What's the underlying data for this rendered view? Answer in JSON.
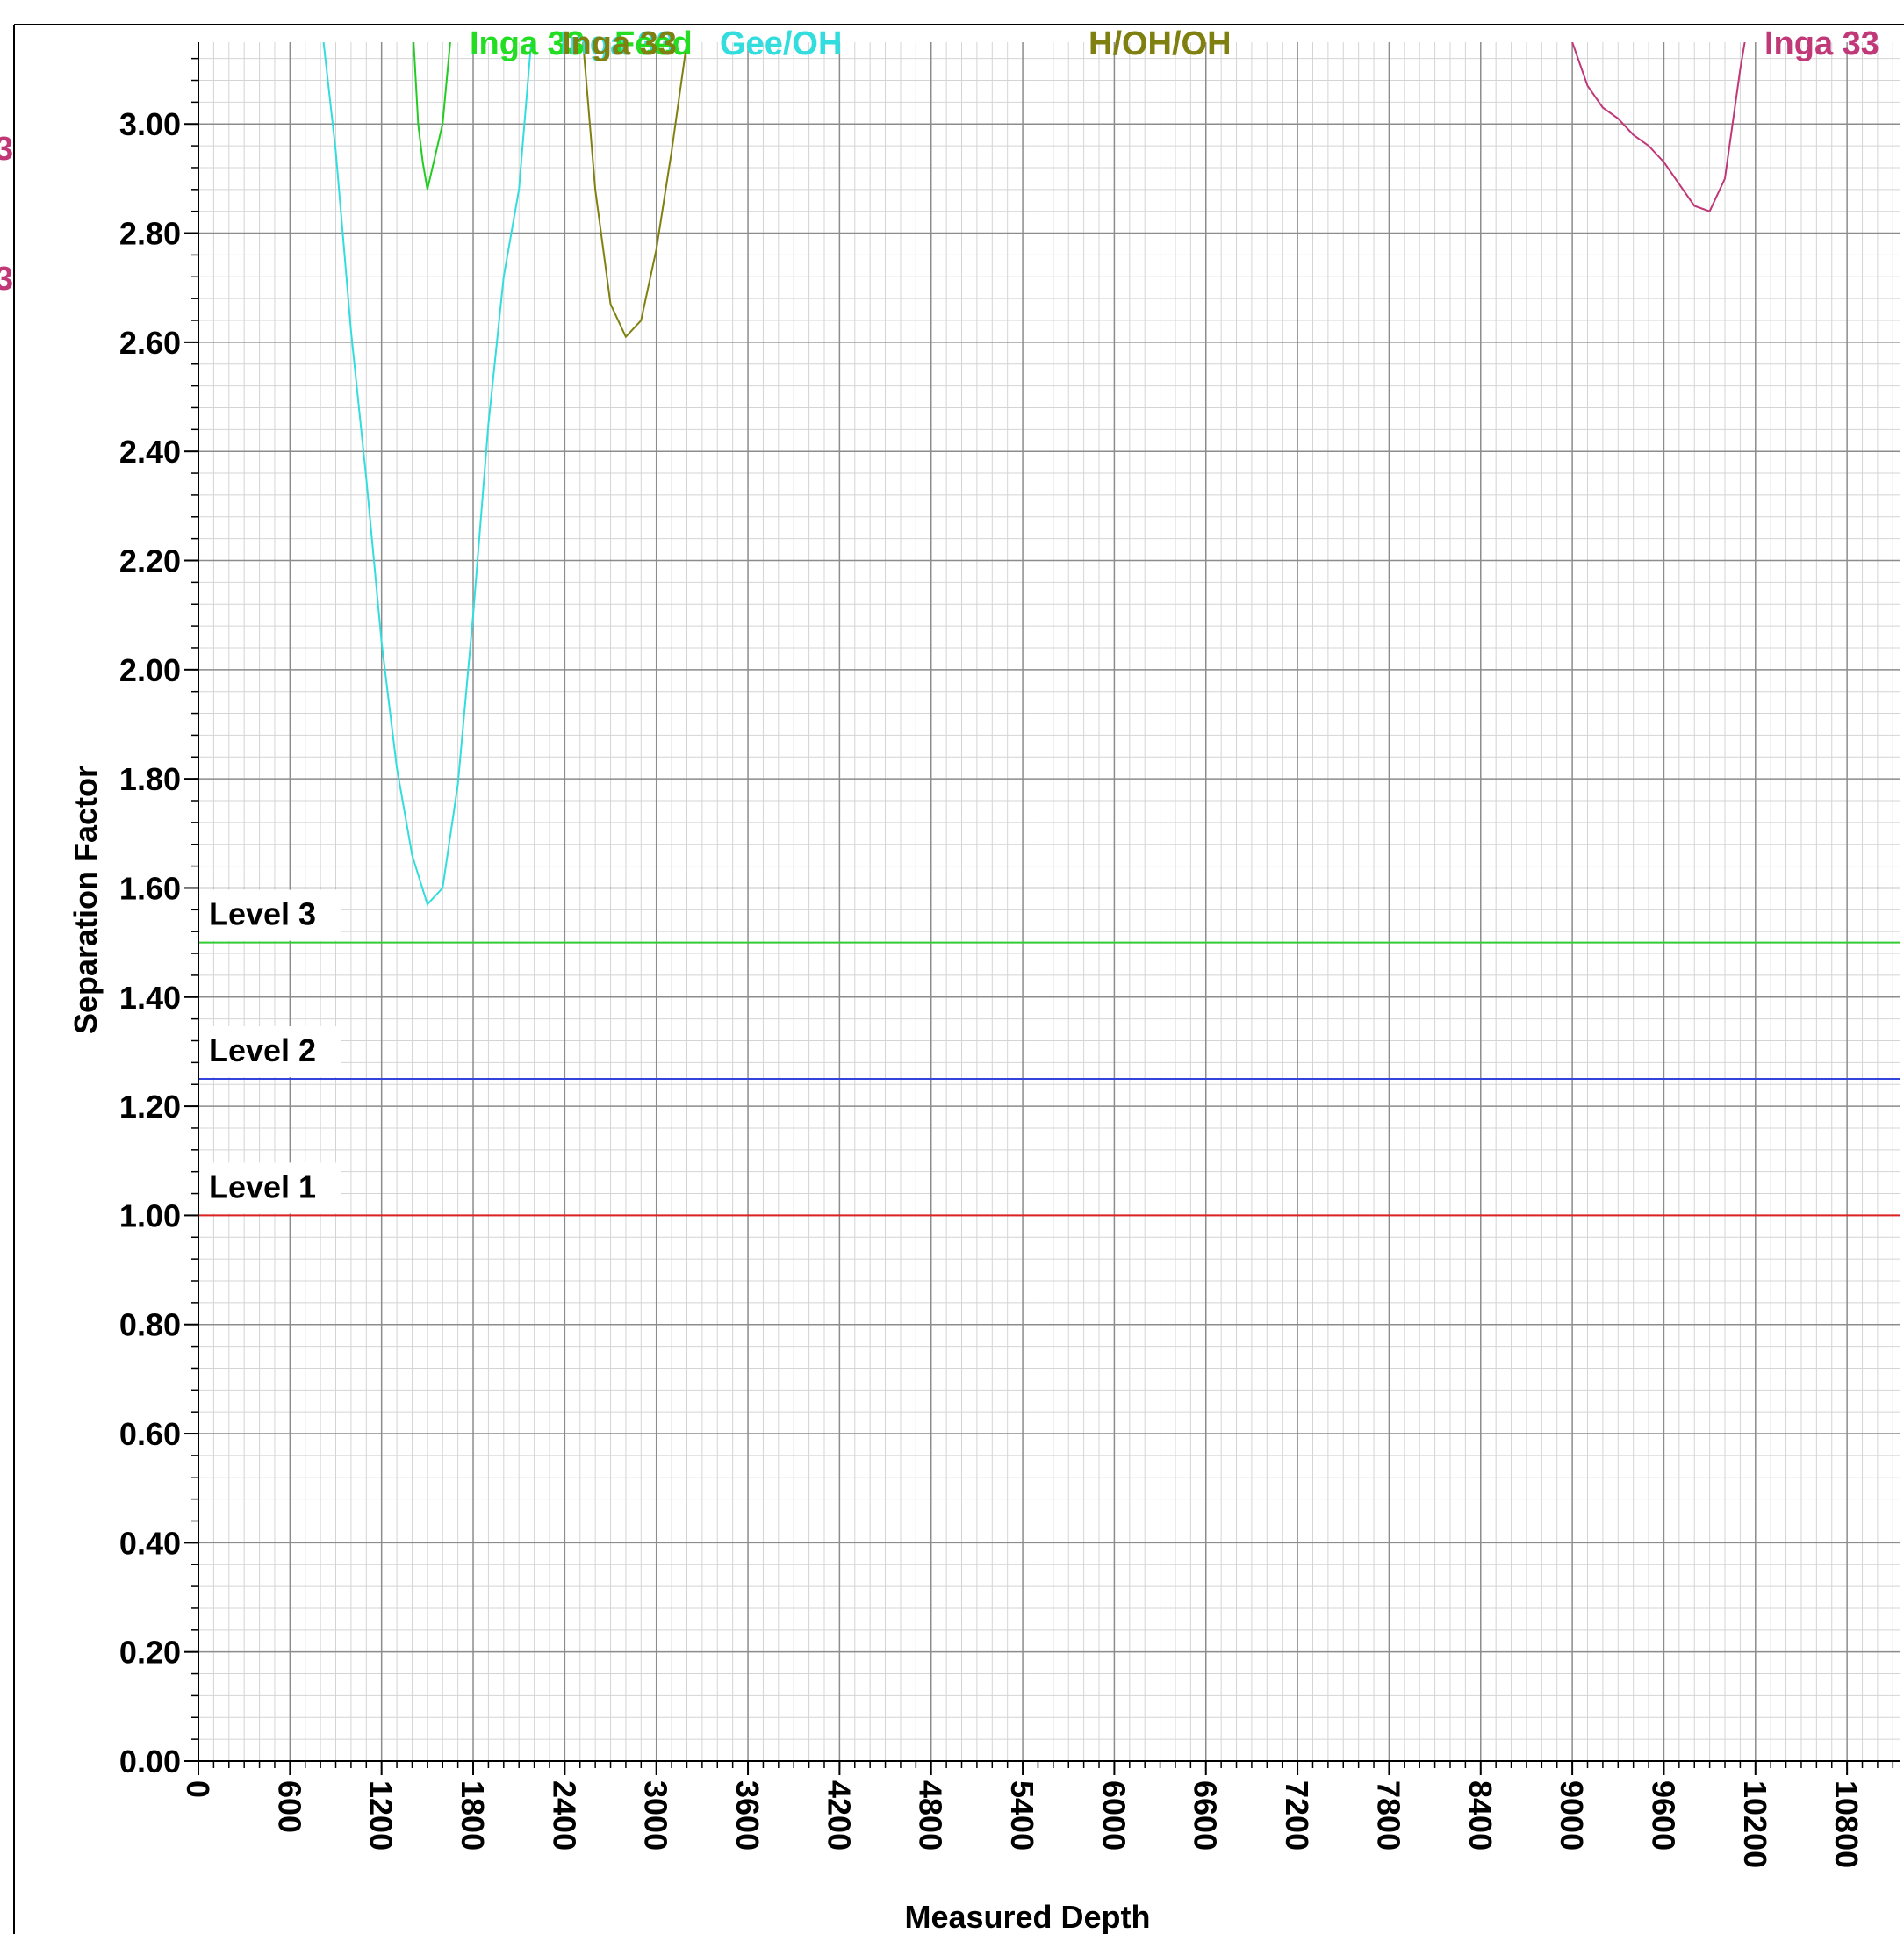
{
  "chart_data": {
    "type": "line",
    "title": "",
    "xlabel": "Measured Depth",
    "ylabel": "Separation Factor",
    "xlim": [
      0,
      11150
    ],
    "ylim": [
      0,
      3.15
    ],
    "x_ticks": [
      0,
      600,
      1200,
      1800,
      2400,
      3000,
      3600,
      4200,
      4800,
      5400,
      6000,
      6600,
      7200,
      7800,
      8400,
      9000,
      9600,
      10200,
      10800
    ],
    "x_tick_labels": [
      "0",
      "600",
      "1200",
      "1800",
      "2400",
      "3000",
      "3600",
      "4200",
      "4800",
      "5400",
      "6000",
      "6600",
      "7200",
      "7800",
      "8400",
      "9000",
      "9600",
      "10200",
      "10800"
    ],
    "y_ticks": [
      0,
      0.2,
      0.4,
      0.6,
      0.8,
      1.0,
      1.2,
      1.4,
      1.6,
      1.8,
      2.0,
      2.2,
      2.4,
      2.6,
      2.8,
      3.0
    ],
    "y_tick_labels": [
      "0.00",
      "0.20",
      "0.40",
      "0.60",
      "0.80",
      "1.00",
      "1.20",
      "1.40",
      "1.60",
      "1.80",
      "2.00",
      "2.20",
      "2.40",
      "2.60",
      "2.80",
      "3.00"
    ],
    "grid": true,
    "thresholds": [
      {
        "label": "Level  3",
        "value": 1.5,
        "color": "#33cc33"
      },
      {
        "label": "Level  2",
        "value": 1.25,
        "color": "#3344dd"
      },
      {
        "label": "Level  1",
        "value": 1.0,
        "color": "#dd2222"
      }
    ],
    "series": [
      {
        "color": "#33dddd",
        "points": [
          [
            820,
            3.15
          ],
          [
            900,
            2.95
          ],
          [
            1000,
            2.62
          ],
          [
            1100,
            2.35
          ],
          [
            1200,
            2.05
          ],
          [
            1300,
            1.82
          ],
          [
            1400,
            1.66
          ],
          [
            1500,
            1.57
          ],
          [
            1600,
            1.6
          ],
          [
            1700,
            1.79
          ],
          [
            1800,
            2.1
          ],
          [
            1900,
            2.45
          ],
          [
            2000,
            2.72
          ],
          [
            2100,
            2.88
          ],
          [
            2180,
            3.15
          ]
        ]
      },
      {
        "color": "#22cc22",
        "points": [
          [
            1410,
            3.15
          ],
          [
            1440,
            3.0
          ],
          [
            1470,
            2.93
          ],
          [
            1500,
            2.88
          ],
          [
            1600,
            3.0
          ],
          [
            1650,
            3.15
          ]
        ]
      },
      {
        "color": "#808010",
        "points": [
          [
            2520,
            3.15
          ],
          [
            2600,
            2.88
          ],
          [
            2700,
            2.67
          ],
          [
            2800,
            2.61
          ],
          [
            2900,
            2.64
          ],
          [
            3000,
            2.77
          ],
          [
            3100,
            2.95
          ],
          [
            3200,
            3.15
          ]
        ]
      },
      {
        "color": "#c03878",
        "points": [
          [
            9000,
            3.15
          ],
          [
            9100,
            3.07
          ],
          [
            9200,
            3.03
          ],
          [
            9300,
            3.01
          ],
          [
            9400,
            2.98
          ],
          [
            9500,
            2.96
          ],
          [
            9600,
            2.93
          ],
          [
            9700,
            2.89
          ],
          [
            9800,
            2.85
          ],
          [
            9900,
            2.84
          ],
          [
            10000,
            2.9
          ],
          [
            10100,
            3.1
          ],
          [
            10130,
            3.15
          ]
        ]
      }
    ],
    "top_labels": [
      {
        "text": "Inga 33",
        "color": "#22dd22"
      },
      {
        "text": "Inga 33",
        "color": "#33dddd"
      },
      {
        "text": "Feed",
        "color": "#22dd22"
      },
      {
        "text": "Gee/OH",
        "color": "#33dddd"
      },
      {
        "text": "Inga 33",
        "color": "#808010"
      },
      {
        "text": "Inga 33",
        "color": "#c03878"
      }
    ],
    "top_label_overlap_text": "Inga 83 Inga 33 Feed Gee/OH Inga 33 H/OH/OH",
    "top_label_tail": "H/OH/OH",
    "left_edge_labels": [
      {
        "text": "3",
        "color": "#c03878"
      },
      {
        "text": "3",
        "color": "#c03878"
      }
    ]
  }
}
